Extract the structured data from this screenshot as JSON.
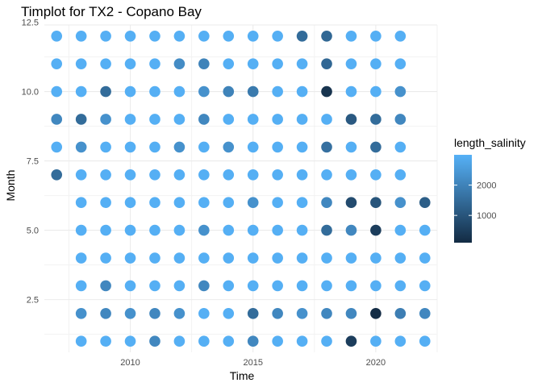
{
  "chart_data": {
    "type": "scatter",
    "title": "Timplot for TX2 - Copano Bay",
    "xlabel": "Time",
    "ylabel": "Month",
    "xlim": [
      2006.5,
      2022.5
    ],
    "ylim": [
      0.6,
      12.4
    ],
    "x_ticks": [
      2010,
      2015,
      2020
    ],
    "y_ticks": [
      2.5,
      5.0,
      7.5,
      10.0,
      12.5
    ],
    "x_tick_labels": [
      "2010",
      "2015",
      "2020"
    ],
    "y_tick_labels": [
      "2.5",
      "5.0",
      "7.5",
      "10.0",
      "12.5"
    ],
    "grid": true,
    "legend": {
      "title": "length_salinity",
      "position": "right",
      "ticks": [
        1000,
        2000
      ],
      "tick_labels": [
        "1000",
        "2000"
      ],
      "range": [
        100,
        3000
      ],
      "color_low": "#132B43",
      "color_high": "#56B1F7"
    },
    "points": [
      {
        "x": 2007,
        "y": 12,
        "c": 2950
      },
      {
        "x": 2008,
        "y": 12,
        "c": 2950
      },
      {
        "x": 2009,
        "y": 12,
        "c": 2950
      },
      {
        "x": 2010,
        "y": 12,
        "c": 2950
      },
      {
        "x": 2011,
        "y": 12,
        "c": 2950
      },
      {
        "x": 2012,
        "y": 12,
        "c": 2950
      },
      {
        "x": 2013,
        "y": 12,
        "c": 2950
      },
      {
        "x": 2014,
        "y": 12,
        "c": 2950
      },
      {
        "x": 2015,
        "y": 12,
        "c": 2950
      },
      {
        "x": 2016,
        "y": 12,
        "c": 2950
      },
      {
        "x": 2017,
        "y": 12,
        "c": 1500
      },
      {
        "x": 2018,
        "y": 12,
        "c": 1400
      },
      {
        "x": 2019,
        "y": 12,
        "c": 2950
      },
      {
        "x": 2020,
        "y": 12,
        "c": 2950
      },
      {
        "x": 2021,
        "y": 12,
        "c": 2950
      },
      {
        "x": 2007,
        "y": 11,
        "c": 2950
      },
      {
        "x": 2008,
        "y": 11,
        "c": 2950
      },
      {
        "x": 2009,
        "y": 11,
        "c": 2950
      },
      {
        "x": 2010,
        "y": 11,
        "c": 2950
      },
      {
        "x": 2011,
        "y": 11,
        "c": 2950
      },
      {
        "x": 2012,
        "y": 11,
        "c": 2200
      },
      {
        "x": 2013,
        "y": 11,
        "c": 2000
      },
      {
        "x": 2014,
        "y": 11,
        "c": 2950
      },
      {
        "x": 2015,
        "y": 11,
        "c": 2950
      },
      {
        "x": 2016,
        "y": 11,
        "c": 2950
      },
      {
        "x": 2017,
        "y": 11,
        "c": 2950
      },
      {
        "x": 2018,
        "y": 11,
        "c": 1400
      },
      {
        "x": 2019,
        "y": 11,
        "c": 2950
      },
      {
        "x": 2020,
        "y": 11,
        "c": 2950
      },
      {
        "x": 2021,
        "y": 11,
        "c": 2950
      },
      {
        "x": 2007,
        "y": 10,
        "c": 2950
      },
      {
        "x": 2008,
        "y": 10,
        "c": 2950
      },
      {
        "x": 2009,
        "y": 10,
        "c": 1500
      },
      {
        "x": 2010,
        "y": 10,
        "c": 2950
      },
      {
        "x": 2011,
        "y": 10,
        "c": 2950
      },
      {
        "x": 2012,
        "y": 10,
        "c": 2950
      },
      {
        "x": 2013,
        "y": 10,
        "c": 2300
      },
      {
        "x": 2014,
        "y": 10,
        "c": 2000
      },
      {
        "x": 2015,
        "y": 10,
        "c": 1800
      },
      {
        "x": 2016,
        "y": 10,
        "c": 2950
      },
      {
        "x": 2017,
        "y": 10,
        "c": 2950
      },
      {
        "x": 2018,
        "y": 10,
        "c": 300
      },
      {
        "x": 2019,
        "y": 10,
        "c": 2950
      },
      {
        "x": 2020,
        "y": 10,
        "c": 2950
      },
      {
        "x": 2021,
        "y": 10,
        "c": 2300
      },
      {
        "x": 2007,
        "y": 9,
        "c": 2100
      },
      {
        "x": 2008,
        "y": 9,
        "c": 1500
      },
      {
        "x": 2009,
        "y": 9,
        "c": 2300
      },
      {
        "x": 2010,
        "y": 9,
        "c": 2950
      },
      {
        "x": 2011,
        "y": 9,
        "c": 2950
      },
      {
        "x": 2012,
        "y": 9,
        "c": 2950
      },
      {
        "x": 2013,
        "y": 9,
        "c": 2100
      },
      {
        "x": 2014,
        "y": 9,
        "c": 2950
      },
      {
        "x": 2015,
        "y": 9,
        "c": 2950
      },
      {
        "x": 2016,
        "y": 9,
        "c": 2950
      },
      {
        "x": 2017,
        "y": 9,
        "c": 2950
      },
      {
        "x": 2018,
        "y": 9,
        "c": 2950
      },
      {
        "x": 2019,
        "y": 9,
        "c": 1100
      },
      {
        "x": 2020,
        "y": 9,
        "c": 1500
      },
      {
        "x": 2021,
        "y": 9,
        "c": 2100
      },
      {
        "x": 2007,
        "y": 8,
        "c": 2950
      },
      {
        "x": 2008,
        "y": 8,
        "c": 2300
      },
      {
        "x": 2009,
        "y": 8,
        "c": 2950
      },
      {
        "x": 2010,
        "y": 8,
        "c": 2950
      },
      {
        "x": 2011,
        "y": 8,
        "c": 2950
      },
      {
        "x": 2012,
        "y": 8,
        "c": 2300
      },
      {
        "x": 2013,
        "y": 8,
        "c": 2950
      },
      {
        "x": 2014,
        "y": 8,
        "c": 2300
      },
      {
        "x": 2015,
        "y": 8,
        "c": 2950
      },
      {
        "x": 2016,
        "y": 8,
        "c": 2950
      },
      {
        "x": 2017,
        "y": 8,
        "c": 2950
      },
      {
        "x": 2018,
        "y": 8,
        "c": 1600
      },
      {
        "x": 2019,
        "y": 8,
        "c": 2950
      },
      {
        "x": 2020,
        "y": 8,
        "c": 1500
      },
      {
        "x": 2021,
        "y": 8,
        "c": 2950
      },
      {
        "x": 2007,
        "y": 7,
        "c": 1500
      },
      {
        "x": 2008,
        "y": 7,
        "c": 2950
      },
      {
        "x": 2009,
        "y": 7,
        "c": 2950
      },
      {
        "x": 2010,
        "y": 7,
        "c": 2950
      },
      {
        "x": 2011,
        "y": 7,
        "c": 2950
      },
      {
        "x": 2012,
        "y": 7,
        "c": 2950
      },
      {
        "x": 2013,
        "y": 7,
        "c": 2950
      },
      {
        "x": 2014,
        "y": 7,
        "c": 2950
      },
      {
        "x": 2015,
        "y": 7,
        "c": 2950
      },
      {
        "x": 2016,
        "y": 7,
        "c": 2950
      },
      {
        "x": 2017,
        "y": 7,
        "c": 2950
      },
      {
        "x": 2018,
        "y": 7,
        "c": 2950
      },
      {
        "x": 2019,
        "y": 7,
        "c": 2950
      },
      {
        "x": 2020,
        "y": 7,
        "c": 2950
      },
      {
        "x": 2021,
        "y": 7,
        "c": 2950
      },
      {
        "x": 2008,
        "y": 6,
        "c": 2950
      },
      {
        "x": 2009,
        "y": 6,
        "c": 2950
      },
      {
        "x": 2010,
        "y": 6,
        "c": 2950
      },
      {
        "x": 2011,
        "y": 6,
        "c": 2950
      },
      {
        "x": 2012,
        "y": 6,
        "c": 2950
      },
      {
        "x": 2013,
        "y": 6,
        "c": 2950
      },
      {
        "x": 2014,
        "y": 6,
        "c": 2950
      },
      {
        "x": 2015,
        "y": 6,
        "c": 2300
      },
      {
        "x": 2016,
        "y": 6,
        "c": 2950
      },
      {
        "x": 2017,
        "y": 6,
        "c": 2950
      },
      {
        "x": 2018,
        "y": 6,
        "c": 2100
      },
      {
        "x": 2019,
        "y": 6,
        "c": 800
      },
      {
        "x": 2020,
        "y": 6,
        "c": 1000
      },
      {
        "x": 2021,
        "y": 6,
        "c": 2300
      },
      {
        "x": 2022,
        "y": 6,
        "c": 1200
      },
      {
        "x": 2008,
        "y": 5,
        "c": 2950
      },
      {
        "x": 2009,
        "y": 5,
        "c": 2950
      },
      {
        "x": 2010,
        "y": 5,
        "c": 2950
      },
      {
        "x": 2011,
        "y": 5,
        "c": 2950
      },
      {
        "x": 2012,
        "y": 5,
        "c": 2950
      },
      {
        "x": 2013,
        "y": 5,
        "c": 2300
      },
      {
        "x": 2014,
        "y": 5,
        "c": 2950
      },
      {
        "x": 2015,
        "y": 5,
        "c": 2950
      },
      {
        "x": 2016,
        "y": 5,
        "c": 2950
      },
      {
        "x": 2017,
        "y": 5,
        "c": 2950
      },
      {
        "x": 2018,
        "y": 5,
        "c": 1500
      },
      {
        "x": 2019,
        "y": 5,
        "c": 2100
      },
      {
        "x": 2020,
        "y": 5,
        "c": 500
      },
      {
        "x": 2021,
        "y": 5,
        "c": 2950
      },
      {
        "x": 2022,
        "y": 5,
        "c": 2950
      },
      {
        "x": 2008,
        "y": 4,
        "c": 2950
      },
      {
        "x": 2009,
        "y": 4,
        "c": 2950
      },
      {
        "x": 2010,
        "y": 4,
        "c": 2950
      },
      {
        "x": 2011,
        "y": 4,
        "c": 2950
      },
      {
        "x": 2012,
        "y": 4,
        "c": 2950
      },
      {
        "x": 2013,
        "y": 4,
        "c": 2950
      },
      {
        "x": 2014,
        "y": 4,
        "c": 2950
      },
      {
        "x": 2015,
        "y": 4,
        "c": 2950
      },
      {
        "x": 2016,
        "y": 4,
        "c": 2950
      },
      {
        "x": 2017,
        "y": 4,
        "c": 2950
      },
      {
        "x": 2018,
        "y": 4,
        "c": 2950
      },
      {
        "x": 2019,
        "y": 4,
        "c": 2950
      },
      {
        "x": 2020,
        "y": 4,
        "c": 2950
      },
      {
        "x": 2021,
        "y": 4,
        "c": 2950
      },
      {
        "x": 2022,
        "y": 4,
        "c": 2950
      },
      {
        "x": 2008,
        "y": 3,
        "c": 2950
      },
      {
        "x": 2009,
        "y": 3,
        "c": 2100
      },
      {
        "x": 2010,
        "y": 3,
        "c": 2950
      },
      {
        "x": 2011,
        "y": 3,
        "c": 2950
      },
      {
        "x": 2012,
        "y": 3,
        "c": 2950
      },
      {
        "x": 2013,
        "y": 3,
        "c": 2100
      },
      {
        "x": 2014,
        "y": 3,
        "c": 2950
      },
      {
        "x": 2015,
        "y": 3,
        "c": 2950
      },
      {
        "x": 2016,
        "y": 3,
        "c": 2950
      },
      {
        "x": 2017,
        "y": 3,
        "c": 2950
      },
      {
        "x": 2018,
        "y": 3,
        "c": 2950
      },
      {
        "x": 2019,
        "y": 3,
        "c": 2950
      },
      {
        "x": 2020,
        "y": 3,
        "c": 2950
      },
      {
        "x": 2021,
        "y": 3,
        "c": 2950
      },
      {
        "x": 2022,
        "y": 3,
        "c": 2950
      },
      {
        "x": 2008,
        "y": 2,
        "c": 2300
      },
      {
        "x": 2009,
        "y": 2,
        "c": 2100
      },
      {
        "x": 2010,
        "y": 2,
        "c": 2300
      },
      {
        "x": 2011,
        "y": 2,
        "c": 2100
      },
      {
        "x": 2012,
        "y": 2,
        "c": 2300
      },
      {
        "x": 2013,
        "y": 2,
        "c": 2950
      },
      {
        "x": 2014,
        "y": 2,
        "c": 2950
      },
      {
        "x": 2015,
        "y": 2,
        "c": 1500
      },
      {
        "x": 2016,
        "y": 2,
        "c": 2100
      },
      {
        "x": 2017,
        "y": 2,
        "c": 2300
      },
      {
        "x": 2018,
        "y": 2,
        "c": 2100
      },
      {
        "x": 2019,
        "y": 2,
        "c": 2100
      },
      {
        "x": 2020,
        "y": 2,
        "c": 150
      },
      {
        "x": 2021,
        "y": 2,
        "c": 1900
      },
      {
        "x": 2022,
        "y": 2,
        "c": 2100
      },
      {
        "x": 2008,
        "y": 1,
        "c": 2950
      },
      {
        "x": 2009,
        "y": 1,
        "c": 2950
      },
      {
        "x": 2010,
        "y": 1,
        "c": 2950
      },
      {
        "x": 2011,
        "y": 1,
        "c": 2100
      },
      {
        "x": 2012,
        "y": 1,
        "c": 2950
      },
      {
        "x": 2013,
        "y": 1,
        "c": 2950
      },
      {
        "x": 2014,
        "y": 1,
        "c": 2950
      },
      {
        "x": 2015,
        "y": 1,
        "c": 2100
      },
      {
        "x": 2016,
        "y": 1,
        "c": 2950
      },
      {
        "x": 2017,
        "y": 1,
        "c": 2950
      },
      {
        "x": 2018,
        "y": 1,
        "c": 2950
      },
      {
        "x": 2019,
        "y": 1,
        "c": 500
      },
      {
        "x": 2020,
        "y": 1,
        "c": 2950
      },
      {
        "x": 2021,
        "y": 1,
        "c": 2950
      },
      {
        "x": 2022,
        "y": 1,
        "c": 2950
      }
    ]
  }
}
